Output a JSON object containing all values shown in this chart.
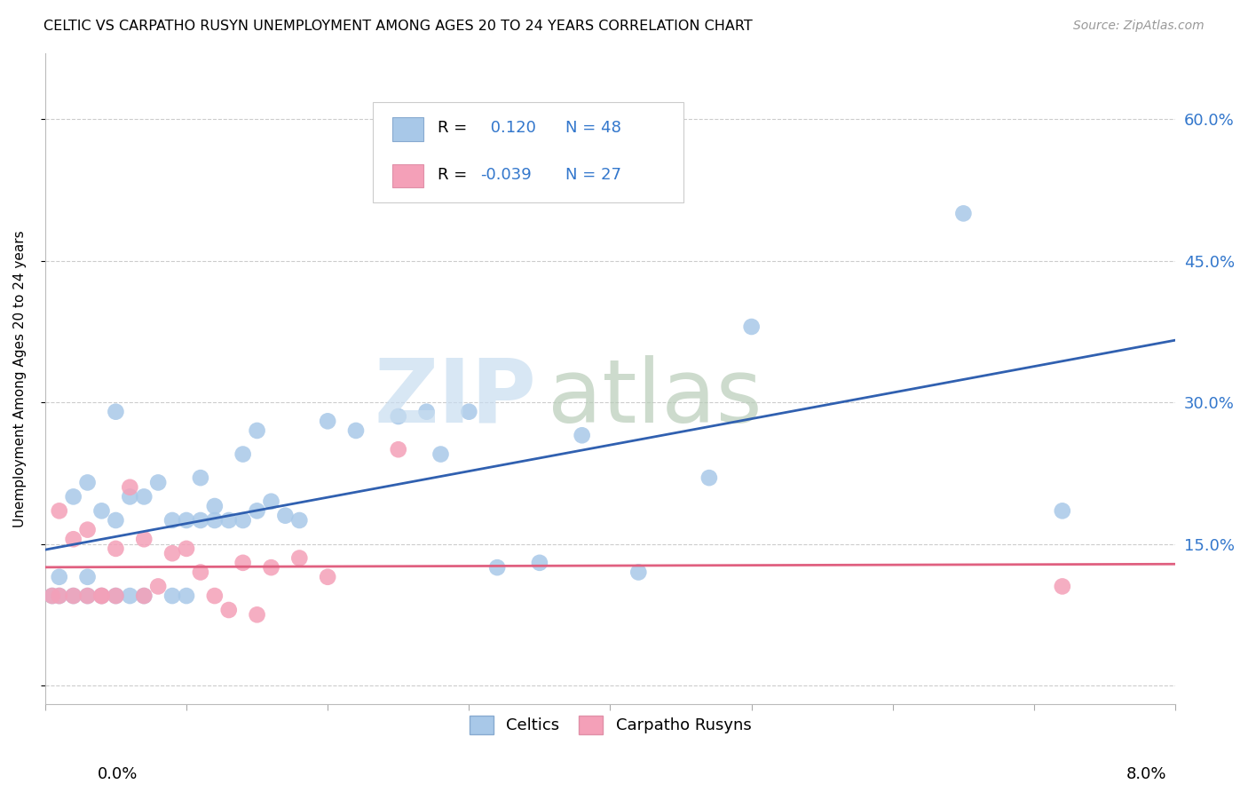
{
  "title": "CELTIC VS CARPATHO RUSYN UNEMPLOYMENT AMONG AGES 20 TO 24 YEARS CORRELATION CHART",
  "source": "Source: ZipAtlas.com",
  "ylabel": "Unemployment Among Ages 20 to 24 years",
  "right_yticks": [
    "60.0%",
    "45.0%",
    "30.0%",
    "15.0%"
  ],
  "right_ytick_vals": [
    0.6,
    0.45,
    0.3,
    0.15
  ],
  "xmin": 0.0,
  "xmax": 0.08,
  "ymin": -0.02,
  "ymax": 0.67,
  "celtic_R": 0.12,
  "celtic_N": 48,
  "rusyn_R": -0.039,
  "rusyn_N": 27,
  "celtic_color": "#a8c8e8",
  "rusyn_color": "#f4a0b8",
  "line_celtic_color": "#3060b0",
  "line_rusyn_color": "#e06080",
  "celtic_points_x": [
    0.0005,
    0.001,
    0.001,
    0.002,
    0.002,
    0.003,
    0.003,
    0.003,
    0.004,
    0.004,
    0.005,
    0.005,
    0.005,
    0.006,
    0.006,
    0.007,
    0.007,
    0.008,
    0.009,
    0.009,
    0.01,
    0.01,
    0.011,
    0.011,
    0.012,
    0.012,
    0.013,
    0.014,
    0.014,
    0.015,
    0.015,
    0.016,
    0.017,
    0.018,
    0.02,
    0.022,
    0.025,
    0.027,
    0.028,
    0.03,
    0.032,
    0.035,
    0.038,
    0.042,
    0.047,
    0.05,
    0.065,
    0.072
  ],
  "celtic_points_y": [
    0.095,
    0.095,
    0.115,
    0.095,
    0.2,
    0.095,
    0.115,
    0.215,
    0.095,
    0.185,
    0.095,
    0.175,
    0.29,
    0.095,
    0.2,
    0.095,
    0.2,
    0.215,
    0.095,
    0.175,
    0.095,
    0.175,
    0.175,
    0.22,
    0.175,
    0.19,
    0.175,
    0.175,
    0.245,
    0.185,
    0.27,
    0.195,
    0.18,
    0.175,
    0.28,
    0.27,
    0.285,
    0.29,
    0.245,
    0.29,
    0.125,
    0.13,
    0.265,
    0.12,
    0.22,
    0.38,
    0.5,
    0.185
  ],
  "rusyn_points_x": [
    0.0005,
    0.001,
    0.001,
    0.002,
    0.002,
    0.003,
    0.003,
    0.004,
    0.004,
    0.005,
    0.005,
    0.006,
    0.007,
    0.007,
    0.008,
    0.009,
    0.01,
    0.011,
    0.012,
    0.013,
    0.014,
    0.015,
    0.016,
    0.018,
    0.02,
    0.025,
    0.072
  ],
  "rusyn_points_y": [
    0.095,
    0.095,
    0.185,
    0.095,
    0.155,
    0.095,
    0.165,
    0.095,
    0.095,
    0.095,
    0.145,
    0.21,
    0.095,
    0.155,
    0.105,
    0.14,
    0.145,
    0.12,
    0.095,
    0.08,
    0.13,
    0.075,
    0.125,
    0.135,
    0.115,
    0.25,
    0.105
  ]
}
